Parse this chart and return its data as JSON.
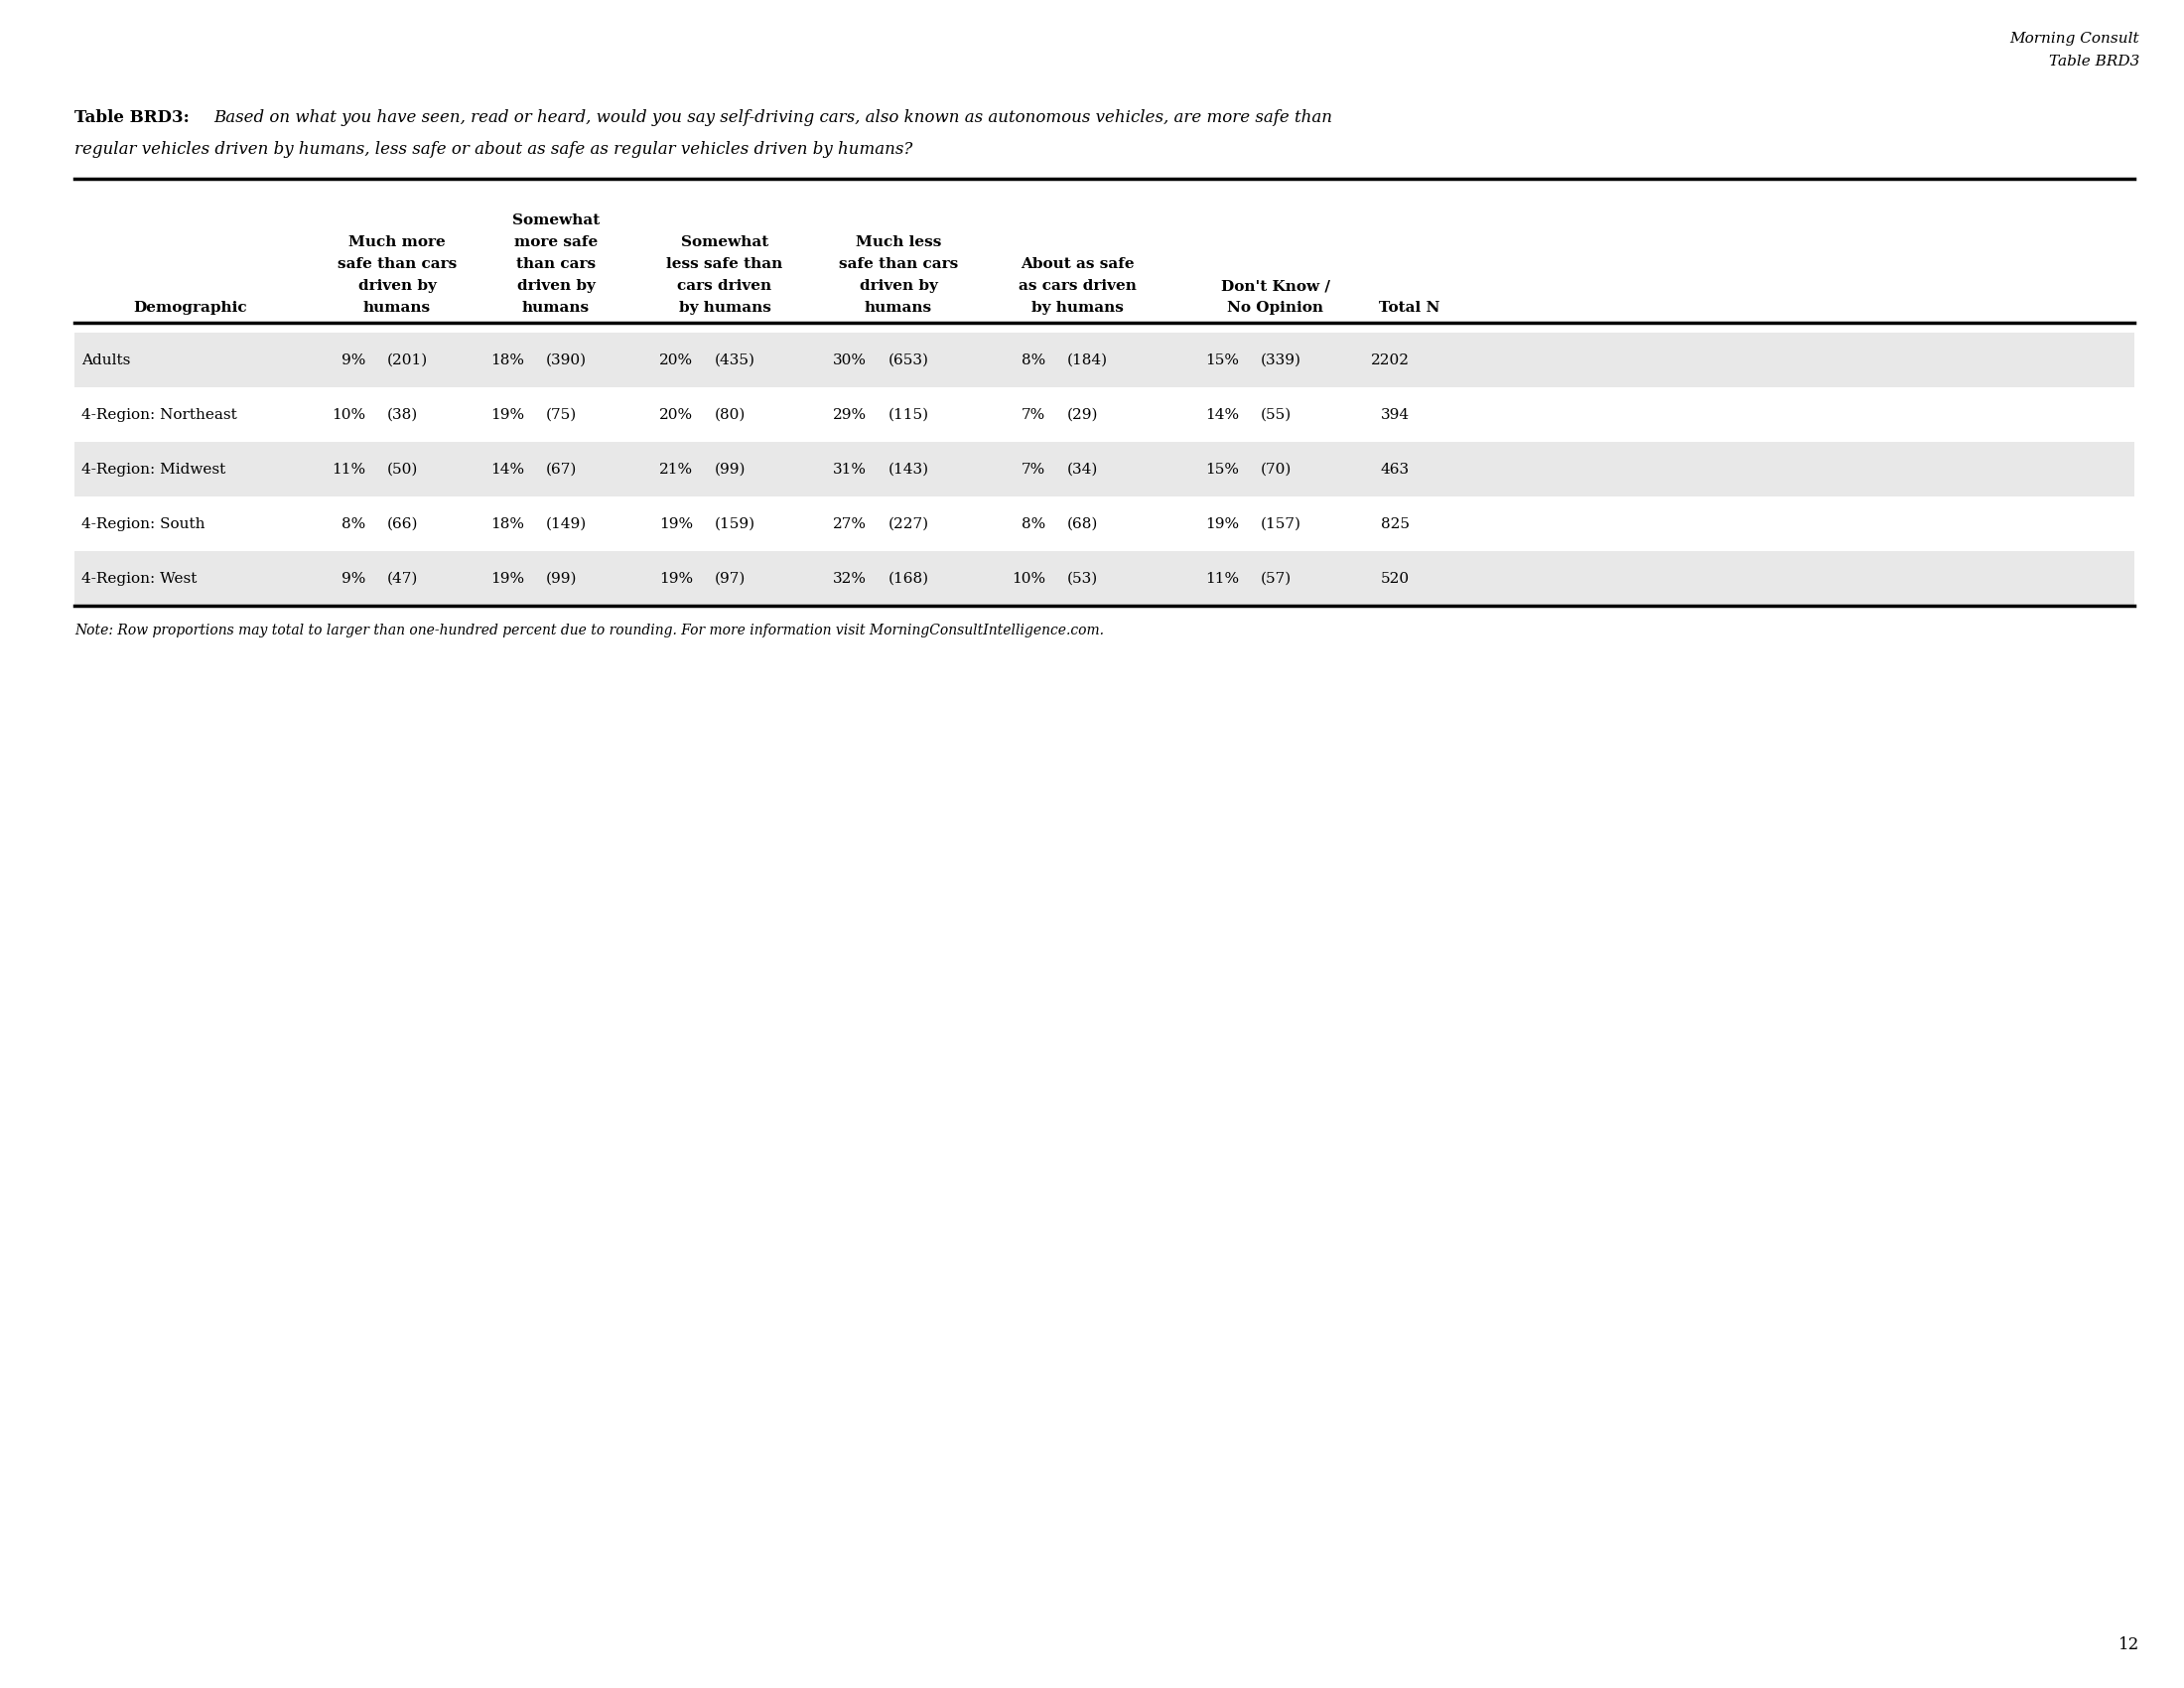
{
  "header_right_line1": "Morning Consult",
  "header_right_line2": "Table BRD3",
  "table_label": "Table BRD3:",
  "table_question_italic": "Based on what you have seen, read or heard, would you say self-driving cars, also known as autonomous vehicles, are more safe than",
  "table_question_line2": "regular vehicles driven by humans, less safe or about as safe as regular vehicles driven by humans?",
  "col_headers": [
    [
      "Much more",
      "safe than cars",
      "driven by",
      "humans"
    ],
    [
      "Somewhat",
      "more safe",
      "than cars",
      "driven by",
      "humans"
    ],
    [
      "Somewhat",
      "less safe than",
      "cars driven",
      "by humans"
    ],
    [
      "Much less",
      "safe than cars",
      "driven by",
      "humans"
    ],
    [
      "About as safe",
      "as cars driven",
      "by humans"
    ],
    [
      "Don't Know /",
      "No Opinion"
    ],
    [
      "Total N"
    ]
  ],
  "row_header": "Demographic",
  "rows": [
    {
      "label": "Adults",
      "values": [
        "9%",
        "(201)",
        "18%",
        "(390)",
        "20%",
        "(435)",
        "30%",
        "(653)",
        "8%",
        "(184)",
        "15%",
        "(339)",
        "2202"
      ],
      "shaded": true
    },
    {
      "label": "4-Region: Northeast",
      "values": [
        "10%",
        "(38)",
        "19%",
        "(75)",
        "20%",
        "(80)",
        "29%",
        "(115)",
        "7%",
        "(29)",
        "14%",
        "(55)",
        "394"
      ],
      "shaded": false
    },
    {
      "label": "4-Region: Midwest",
      "values": [
        "11%",
        "(50)",
        "14%",
        "(67)",
        "21%",
        "(99)",
        "31%",
        "(143)",
        "7%",
        "(34)",
        "15%",
        "(70)",
        "463"
      ],
      "shaded": true
    },
    {
      "label": "4-Region: South",
      "values": [
        "8%",
        "(66)",
        "18%",
        "(149)",
        "19%",
        "(159)",
        "27%",
        "(227)",
        "8%",
        "(68)",
        "19%",
        "(157)",
        "825"
      ],
      "shaded": false
    },
    {
      "label": "4-Region: West",
      "values": [
        "9%",
        "(47)",
        "19%",
        "(99)",
        "19%",
        "(97)",
        "32%",
        "(168)",
        "10%",
        "(53)",
        "11%",
        "(57)",
        "520"
      ],
      "shaded": true
    }
  ],
  "note": "Note: Row proportions may total to larger than one-hundred percent due to rounding. For more information visit MorningConsultIntelligence.com.",
  "page_number": "12",
  "bg_color": "#ffffff",
  "shaded_color": "#e8e8e8",
  "line_color": "#000000",
  "text_color": "#000000"
}
